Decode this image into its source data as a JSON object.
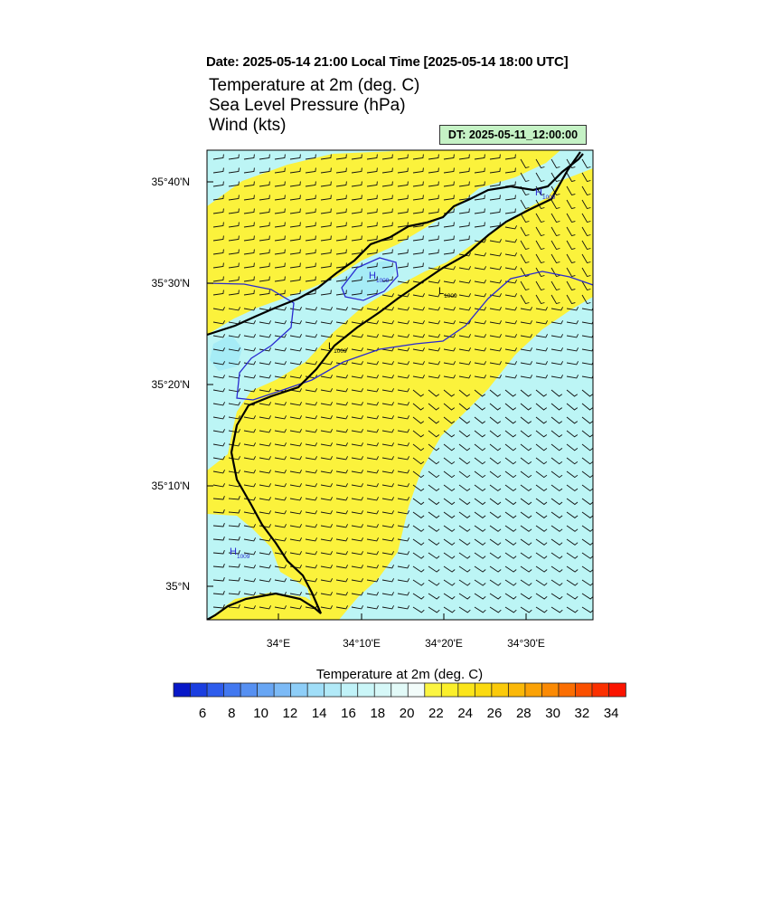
{
  "header": {
    "date_line": "Date: 2025-05-14  21:00 Local Time [2025-05-14  18:00 UTC]",
    "field_lines": [
      "Temperature at 2m   (deg. C)",
      "Sea Level Pressure   (hPa)",
      "Wind   (kts)"
    ],
    "dt_label": "DT: 2025-05-11_12:00:00"
  },
  "map": {
    "lat_labels": [
      "35°40'N",
      "35°30'N",
      "35°20'N",
      "35°10'N",
      "35°N"
    ],
    "lon_labels": [
      "34°E",
      "34°10'E",
      "34°20'E",
      "34°30'E"
    ],
    "pressure_markers": [
      {
        "letter": "H",
        "value": "1009"
      },
      {
        "letter": "H",
        "value": "1009"
      },
      {
        "letter": "L",
        "value": "1009"
      },
      {
        "letter": "L",
        "value": "1009"
      },
      {
        "letter": "H",
        "value": "1009"
      }
    ],
    "colors": {
      "warm": "#fbf23c",
      "cool": "#bcf5f5",
      "cool_dark": "#a6ecf6",
      "coast": "#000000",
      "isobar": "#2a2ad0"
    }
  },
  "colorbar": {
    "title": "Temperature at 2m  (deg. C)",
    "ticks": [
      "6",
      "8",
      "10",
      "12",
      "14",
      "16",
      "18",
      "20",
      "22",
      "24",
      "26",
      "28",
      "30",
      "32",
      "34"
    ],
    "colors": [
      "#0818c8",
      "#1a3ee0",
      "#2e5cec",
      "#4278f0",
      "#5690f2",
      "#68a6f4",
      "#7cbaf6",
      "#8ecef8",
      "#a0def8",
      "#b2eaf8",
      "#c0f2f8",
      "#caf6f8",
      "#d6f8f8",
      "#e2faf8",
      "#f2fcfa",
      "#fbf542",
      "#fbef2a",
      "#fbe51a",
      "#fbda10",
      "#fbca0a",
      "#fbb808",
      "#fba206",
      "#fb8a04",
      "#fb6e02",
      "#fb5000",
      "#fb3000",
      "#fb1400"
    ]
  }
}
